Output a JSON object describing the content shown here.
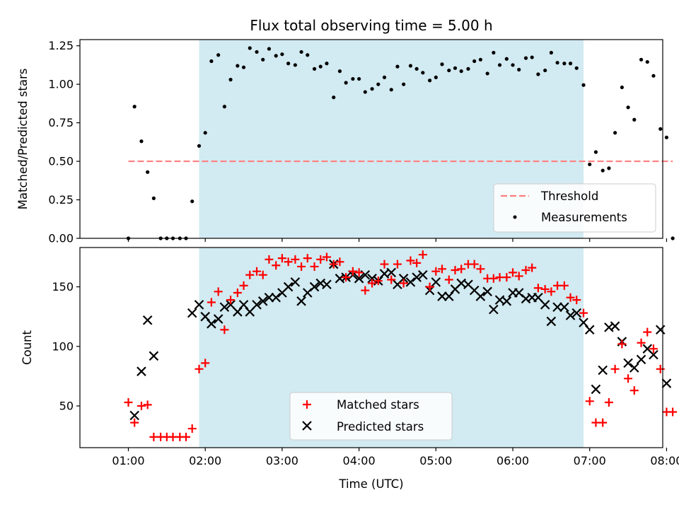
{
  "chart_data": [
    {
      "type": "scatter",
      "title": "Flux total observing time = 5.00 h",
      "xlabel": "",
      "ylabel": "Matched/Predicted stars",
      "xlim": [
        0.37,
        7.95
      ],
      "ylim": [
        0.0,
        1.29
      ],
      "yticks": [
        0.0,
        0.25,
        0.5,
        0.75,
        1.0,
        1.25
      ],
      "yticklabels": [
        "0.00",
        "0.25",
        "0.50",
        "0.75",
        "1.00",
        "1.25"
      ],
      "shaded_span": [
        1.92,
        6.92
      ],
      "shade_color": "#add8e6",
      "threshold": {
        "name": "Threshold",
        "y": 0.5,
        "x_range": [
          1.0,
          8.08
        ],
        "color": "#ff7f7f"
      },
      "series": [
        {
          "name": "Measurements",
          "color": "#000000",
          "points": [
            [
              1.0,
              0.0
            ],
            [
              1.08,
              0.855
            ],
            [
              1.17,
              0.63
            ],
            [
              1.25,
              0.43
            ],
            [
              1.33,
              0.26
            ],
            [
              1.42,
              0.0
            ],
            [
              1.5,
              0.0
            ],
            [
              1.58,
              0.0
            ],
            [
              1.67,
              0.0
            ],
            [
              1.75,
              0.0
            ],
            [
              1.83,
              0.24
            ],
            [
              1.92,
              0.6
            ],
            [
              2.0,
              0.685
            ],
            [
              2.08,
              1.15
            ],
            [
              2.17,
              1.19
            ],
            [
              2.25,
              0.855
            ],
            [
              2.33,
              1.03
            ],
            [
              2.42,
              1.12
            ],
            [
              2.5,
              1.11
            ],
            [
              2.58,
              1.235
            ],
            [
              2.67,
              1.21
            ],
            [
              2.75,
              1.16
            ],
            [
              2.83,
              1.23
            ],
            [
              2.92,
              1.185
            ],
            [
              3.0,
              1.195
            ],
            [
              3.08,
              1.135
            ],
            [
              3.17,
              1.125
            ],
            [
              3.25,
              1.21
            ],
            [
              3.33,
              1.19
            ],
            [
              3.42,
              1.1
            ],
            [
              3.5,
              1.115
            ],
            [
              3.58,
              1.135
            ],
            [
              3.67,
              0.915
            ],
            [
              3.75,
              1.085
            ],
            [
              3.83,
              1.01
            ],
            [
              3.92,
              1.035
            ],
            [
              4.0,
              1.035
            ],
            [
              4.08,
              0.95
            ],
            [
              4.17,
              0.97
            ],
            [
              4.25,
              1.0
            ],
            [
              4.33,
              1.045
            ],
            [
              4.42,
              0.965
            ],
            [
              4.5,
              1.115
            ],
            [
              4.58,
              1.0
            ],
            [
              4.67,
              1.12
            ],
            [
              4.75,
              1.1
            ],
            [
              4.83,
              1.075
            ],
            [
              4.92,
              1.025
            ],
            [
              5.0,
              1.045
            ],
            [
              5.08,
              1.13
            ],
            [
              5.17,
              1.09
            ],
            [
              5.25,
              1.105
            ],
            [
              5.33,
              1.085
            ],
            [
              5.42,
              1.1
            ],
            [
              5.5,
              1.15
            ],
            [
              5.58,
              1.16
            ],
            [
              5.67,
              1.07
            ],
            [
              5.75,
              1.205
            ],
            [
              5.83,
              1.125
            ],
            [
              5.92,
              1.165
            ],
            [
              6.0,
              1.125
            ],
            [
              6.08,
              1.095
            ],
            [
              6.17,
              1.17
            ],
            [
              6.25,
              1.175
            ],
            [
              6.33,
              1.065
            ],
            [
              6.42,
              1.09
            ],
            [
              6.5,
              1.205
            ],
            [
              6.58,
              1.14
            ],
            [
              6.67,
              1.135
            ],
            [
              6.75,
              1.135
            ],
            [
              6.83,
              1.105
            ],
            [
              6.92,
              0.995
            ],
            [
              7.0,
              0.48
            ],
            [
              7.08,
              0.56
            ],
            [
              7.17,
              0.44
            ],
            [
              7.25,
              0.455
            ],
            [
              7.33,
              0.685
            ],
            [
              7.42,
              0.98
            ],
            [
              7.5,
              0.85
            ],
            [
              7.58,
              0.77
            ],
            [
              7.67,
              1.16
            ],
            [
              7.75,
              1.145
            ],
            [
              7.83,
              1.055
            ],
            [
              7.92,
              0.71
            ],
            [
              8.0,
              0.655
            ],
            [
              8.08,
              0.0
            ]
          ]
        }
      ],
      "legend": {
        "location": "lower right",
        "entries": [
          "Threshold",
          "Measurements"
        ]
      }
    },
    {
      "type": "scatter",
      "title": "",
      "xlabel": "Time (UTC)",
      "ylabel": "Count",
      "xlim": [
        0.37,
        7.95
      ],
      "ylim": [
        15,
        183
      ],
      "xticks": [
        1.0,
        2.0,
        3.0,
        4.0,
        5.0,
        6.0,
        7.0,
        8.0
      ],
      "xticklabels": [
        "01:00",
        "02:00",
        "03:00",
        "04:00",
        "05:00",
        "06:00",
        "07:00",
        "08:00"
      ],
      "yticks": [
        50,
        100,
        150
      ],
      "yticklabels": [
        "50",
        "100",
        "150"
      ],
      "shaded_span": [
        1.92,
        6.92
      ],
      "shade_color": "#add8e6",
      "series": [
        {
          "name": "Matched stars",
          "marker": "plus",
          "color": "#ff0000",
          "points": [
            [
              1.0,
              53
            ],
            [
              1.08,
              36
            ],
            [
              1.17,
              50
            ],
            [
              1.25,
              51
            ],
            [
              1.33,
              24
            ],
            [
              1.42,
              24
            ],
            [
              1.5,
              24
            ],
            [
              1.58,
              24
            ],
            [
              1.67,
              24
            ],
            [
              1.75,
              24
            ],
            [
              1.83,
              31
            ],
            [
              1.92,
              81
            ],
            [
              2.0,
              86
            ],
            [
              2.08,
              137
            ],
            [
              2.17,
              146
            ],
            [
              2.25,
              114
            ],
            [
              2.33,
              139
            ],
            [
              2.42,
              145
            ],
            [
              2.5,
              151
            ],
            [
              2.58,
              160
            ],
            [
              2.67,
              163
            ],
            [
              2.75,
              160
            ],
            [
              2.83,
              173
            ],
            [
              2.92,
              168
            ],
            [
              3.0,
              174
            ],
            [
              3.08,
              171
            ],
            [
              3.17,
              173
            ],
            [
              3.25,
              167
            ],
            [
              3.33,
              174
            ],
            [
              3.42,
              167
            ],
            [
              3.5,
              173
            ],
            [
              3.58,
              175
            ],
            [
              3.67,
              169
            ],
            [
              3.75,
              171
            ],
            [
              3.83,
              158
            ],
            [
              3.92,
              163
            ],
            [
              4.0,
              162
            ],
            [
              4.08,
              147
            ],
            [
              4.17,
              153
            ],
            [
              4.25,
              155
            ],
            [
              4.33,
              169
            ],
            [
              4.42,
              156
            ],
            [
              4.5,
              169
            ],
            [
              4.58,
              153
            ],
            [
              4.67,
              172
            ],
            [
              4.75,
              170
            ],
            [
              4.83,
              177
            ],
            [
              4.92,
              150
            ],
            [
              5.0,
              163
            ],
            [
              5.08,
              165
            ],
            [
              5.17,
              156
            ],
            [
              5.25,
              164
            ],
            [
              5.33,
              165
            ],
            [
              5.42,
              169
            ],
            [
              5.5,
              169
            ],
            [
              5.58,
              165
            ],
            [
              5.67,
              157
            ],
            [
              5.75,
              157
            ],
            [
              5.83,
              158
            ],
            [
              5.92,
              158
            ],
            [
              6.0,
              162
            ],
            [
              6.08,
              159
            ],
            [
              6.17,
              164
            ],
            [
              6.25,
              166
            ],
            [
              6.33,
              149
            ],
            [
              6.42,
              148
            ],
            [
              6.5,
              146
            ],
            [
              6.58,
              151
            ],
            [
              6.67,
              151
            ],
            [
              6.75,
              141
            ],
            [
              6.83,
              139
            ],
            [
              6.92,
              128
            ],
            [
              7.0,
              54
            ],
            [
              7.08,
              36
            ],
            [
              7.17,
              36
            ],
            [
              7.25,
              53
            ],
            [
              7.33,
              81
            ],
            [
              7.42,
              102
            ],
            [
              7.5,
              73
            ],
            [
              7.58,
              63
            ],
            [
              7.67,
              103
            ],
            [
              7.75,
              112
            ],
            [
              7.83,
              98
            ],
            [
              7.92,
              81
            ],
            [
              8.0,
              45
            ],
            [
              8.08,
              45
            ]
          ]
        },
        {
          "name": "Predicted stars",
          "marker": "x",
          "color": "#000000",
          "points": [
            [
              1.08,
              42
            ],
            [
              1.17,
              79
            ],
            [
              1.25,
              122
            ],
            [
              1.33,
              92
            ],
            [
              1.83,
              128
            ],
            [
              1.92,
              135
            ],
            [
              2.0,
              125
            ],
            [
              2.08,
              119
            ],
            [
              2.17,
              123
            ],
            [
              2.25,
              133
            ],
            [
              2.33,
              135
            ],
            [
              2.42,
              129
            ],
            [
              2.5,
              135
            ],
            [
              2.58,
              129
            ],
            [
              2.67,
              135
            ],
            [
              2.75,
              138
            ],
            [
              2.83,
              141
            ],
            [
              2.92,
              141
            ],
            [
              3.0,
              145
            ],
            [
              3.08,
              150
            ],
            [
              3.17,
              154
            ],
            [
              3.25,
              138
            ],
            [
              3.33,
              145
            ],
            [
              3.42,
              150
            ],
            [
              3.5,
              153
            ],
            [
              3.58,
              152
            ],
            [
              3.67,
              169
            ],
            [
              3.75,
              157
            ],
            [
              3.83,
              158
            ],
            [
              3.92,
              160
            ],
            [
              4.0,
              157
            ],
            [
              4.08,
              160
            ],
            [
              4.17,
              157
            ],
            [
              4.25,
              155
            ],
            [
              4.33,
              161
            ],
            [
              4.42,
              162
            ],
            [
              4.5,
              152
            ],
            [
              4.58,
              157
            ],
            [
              4.67,
              154
            ],
            [
              4.75,
              158
            ],
            [
              4.83,
              160
            ],
            [
              4.92,
              147
            ],
            [
              5.0,
              154
            ],
            [
              5.08,
              142
            ],
            [
              5.17,
              142
            ],
            [
              5.25,
              148
            ],
            [
              5.33,
              153
            ],
            [
              5.42,
              152
            ],
            [
              5.5,
              147
            ],
            [
              5.58,
              142
            ],
            [
              5.67,
              146
            ],
            [
              5.75,
              131
            ],
            [
              5.83,
              139
            ],
            [
              5.92,
              138
            ],
            [
              6.0,
              145
            ],
            [
              6.08,
              145
            ],
            [
              6.17,
              140
            ],
            [
              6.25,
              141
            ],
            [
              6.33,
              141
            ],
            [
              6.42,
              135
            ],
            [
              6.5,
              121
            ],
            [
              6.58,
              133
            ],
            [
              6.67,
              133
            ],
            [
              6.75,
              126
            ],
            [
              6.83,
              128
            ],
            [
              6.92,
              120
            ],
            [
              7.0,
              114
            ],
            [
              7.08,
              64
            ],
            [
              7.17,
              80
            ],
            [
              7.25,
              116
            ],
            [
              7.33,
              117
            ],
            [
              7.42,
              104
            ],
            [
              7.5,
              86
            ],
            [
              7.58,
              82
            ],
            [
              7.67,
              89
            ],
            [
              7.75,
              98
            ],
            [
              7.83,
              93
            ],
            [
              7.92,
              114
            ],
            [
              8.0,
              69
            ]
          ]
        }
      ],
      "legend": {
        "location": "lower center",
        "entries": [
          "Matched stars",
          "Predicted stars"
        ]
      }
    }
  ]
}
